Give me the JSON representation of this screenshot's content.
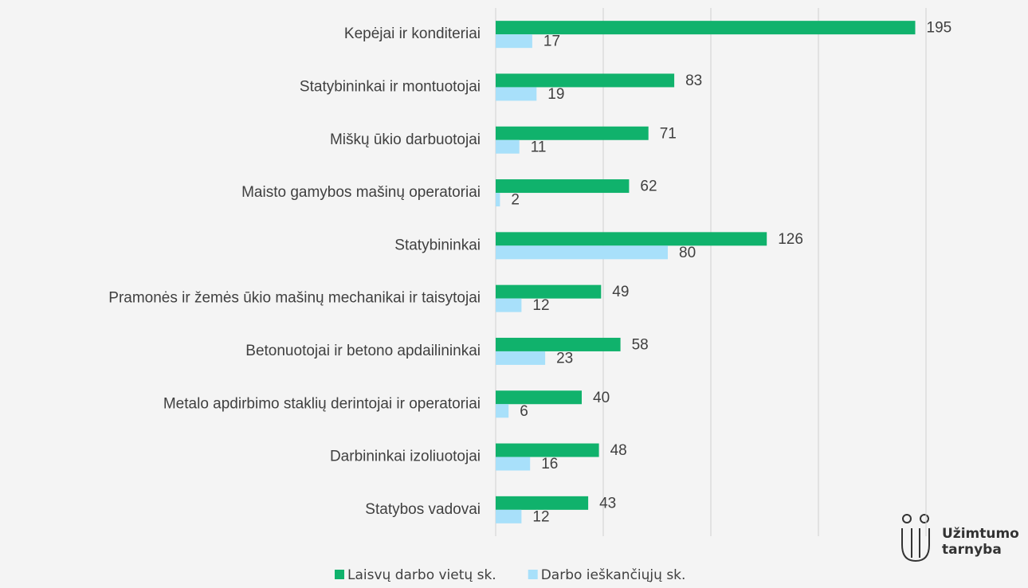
{
  "chart_data": {
    "type": "bar",
    "orientation": "horizontal",
    "categories": [
      "Kepėjai ir konditeriai",
      "Statybininkai ir montuotojai",
      "Miškų ūkio darbuotojai",
      "Maisto gamybos mašinų operatoriai",
      "Statybininkai",
      "Pramonės ir žemės ūkio mašinų mechanikai ir taisytojai",
      "Betonuotojai ir betono apdailininkai",
      "Metalo apdirbimo staklių derintojai ir operatoriai",
      "Darbininkai izoliuotojai",
      "Statybos vadovai"
    ],
    "series": [
      {
        "name": "Laisvų darbo vietų sk.",
        "color": "#10b26c",
        "values": [
          195,
          83,
          71,
          62,
          126,
          49,
          58,
          40,
          48,
          43
        ]
      },
      {
        "name": "Darbo ieškančiųjų sk.",
        "color": "#a8e0fa",
        "values": [
          17,
          19,
          11,
          2,
          80,
          12,
          23,
          6,
          16,
          12
        ]
      }
    ],
    "xlim": [
      0,
      200
    ],
    "xticks": [
      0,
      50,
      100,
      150,
      200
    ],
    "grid": true,
    "legend": "bottom"
  },
  "logo": {
    "line1": "Užimtumo",
    "line2": "tarnyba"
  }
}
